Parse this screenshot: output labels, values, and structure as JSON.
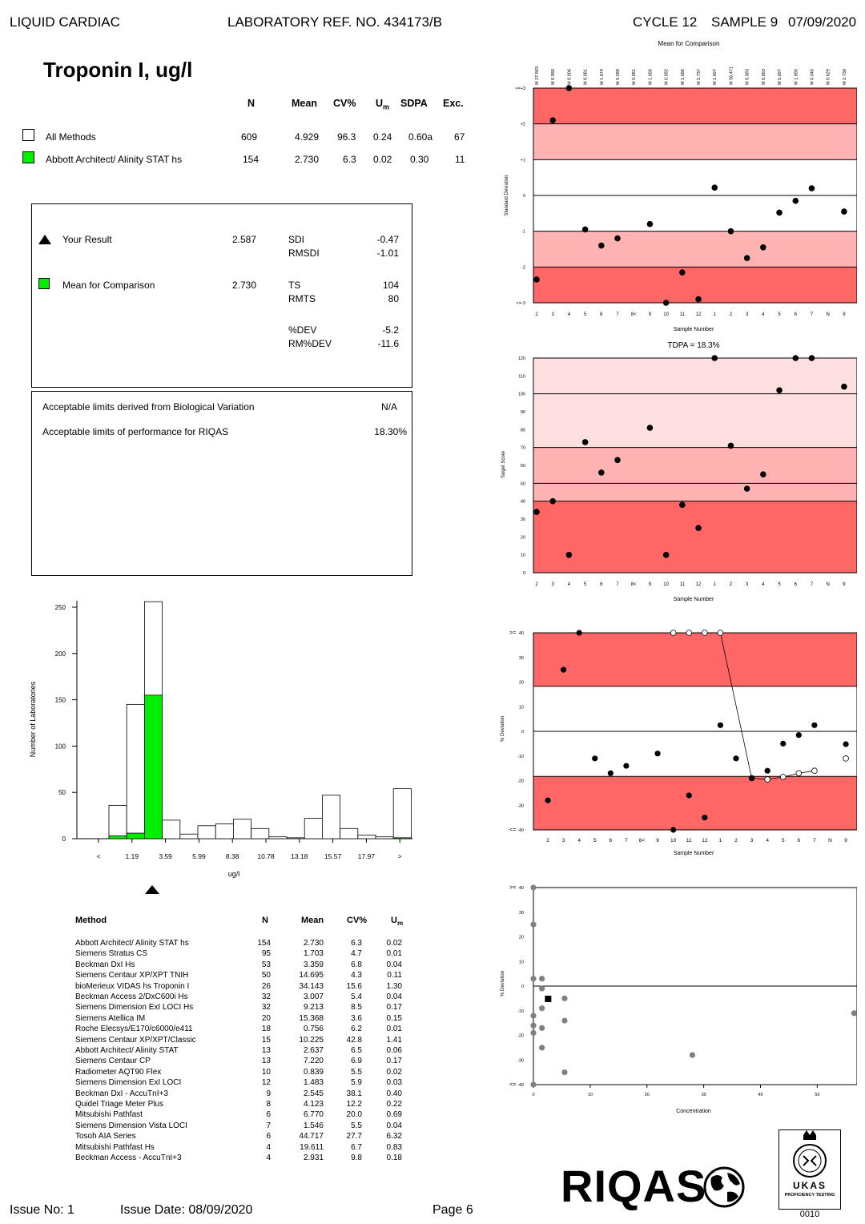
{
  "header": {
    "left": "LIQUID CARDIAC",
    "lab_ref": "LABORATORY REF. NO.  434173/B",
    "cycle": "CYCLE 12",
    "sample": "SAMPLE 9",
    "date": "07/09/2020"
  },
  "title": "Troponin I, ug/l",
  "stats": {
    "headers": {
      "n": "N",
      "mean": "Mean",
      "cv": "CV%",
      "um": "U",
      "um_sub": "m",
      "sdpa": "SDPA",
      "exc": "Exc."
    },
    "rows": [
      {
        "label": "All Methods",
        "n": "609",
        "mean": "4.929",
        "cv": "96.3",
        "um": "0.24",
        "sdpa": "0.60a",
        "exc": "67"
      },
      {
        "label": "Abbott Architect/ Alinity STAT hs",
        "n": "154",
        "mean": "2.730",
        "cv": "6.3",
        "um": "0.02",
        "sdpa": "0.30",
        "exc": "11"
      }
    ]
  },
  "result_box": {
    "your_result_label": "Your Result",
    "your_result_value": "2.587",
    "mean_label": "Mean for Comparison",
    "mean_value": "2.730",
    "sdi_label": "SDI",
    "sdi_value": "-0.47",
    "rmsdi_label": "RMSDI",
    "rmsdi_value": "-1.01",
    "ts_label": "TS",
    "ts_value": "104",
    "rmts_label": "RMTS",
    "rmts_value": "80",
    "dev_label": "%DEV",
    "dev_value": "-5.2",
    "rmdev_label": "RM%DEV",
    "rmdev_value": "-11.6"
  },
  "limits_box": {
    "bio_label": "Acceptable limits derived from Biological Variation",
    "bio_value": "N/A",
    "perf_label": "Acceptable limits of performance for  RIQAS",
    "perf_value": "18.30%"
  },
  "method_table": {
    "headers": {
      "method": "Method",
      "n": "N",
      "mean": "Mean",
      "cv": "CV%",
      "um": "U",
      "um_sub": "m"
    },
    "rows": [
      [
        "Abbott Architect/ Alinity STAT hs",
        "154",
        "2.730",
        "6.3",
        "0.02"
      ],
      [
        "Siemens Stratus CS",
        "95",
        "1.703",
        "4.7",
        "0.01"
      ],
      [
        "Beckman DxI Hs",
        "53",
        "3.359",
        "6.8",
        "0.04"
      ],
      [
        "Siemens Centaur XP/XPT TNIH",
        "50",
        "14.695",
        "4.3",
        "0.11"
      ],
      [
        "bioMerieux VIDAS hs Troponin I",
        "26",
        "34.143",
        "15.6",
        "1.30"
      ],
      [
        "Beckman Access 2/DxC600i Hs",
        "32",
        "3.007",
        "5.4",
        "0.04"
      ],
      [
        "Siemens Dimension ExI LOCI Hs",
        "32",
        "9.213",
        "8.5",
        "0.17"
      ],
      [
        "Siemens Atellica IM",
        "20",
        "15.368",
        "3.6",
        "0.15"
      ],
      [
        "Roche Elecsys/E170/c6000/e411",
        "18",
        "0.756",
        "6.2",
        "0.01"
      ],
      [
        "Siemens Centaur XP/XPT/Classic",
        "15",
        "10.225",
        "42.8",
        "1.41"
      ],
      [
        "Abbott Architect/ Alinity STAT",
        "13",
        "2.637",
        "6.5",
        "0.06"
      ],
      [
        "Siemens Centaur CP",
        "13",
        "7.220",
        "6.9",
        "0.17"
      ],
      [
        "Radiometer AQT90 Flex",
        "10",
        "0.839",
        "5.5",
        "0.02"
      ],
      [
        "Siemens Dimension ExI LOCI",
        "12",
        "1.483",
        "5.9",
        "0.03"
      ],
      [
        "Beckman DxI - AccuTnI+3",
        "9",
        "2.545",
        "38.1",
        "0.40"
      ],
      [
        "Quidel Triage Meter Plus",
        "8",
        "4.123",
        "12.2",
        "0.22"
      ],
      [
        "Mitsubishi Pathfast",
        "6",
        "6.770",
        "20.0",
        "0.69"
      ],
      [
        "Siemens Dimension Vista LOCI",
        "7",
        "1.546",
        "5.5",
        "0.04"
      ],
      [
        "Tosoh AIA Series",
        "6",
        "44.717",
        "27.7",
        "6.32"
      ],
      [
        "Mitsubishi Pathfast Hs",
        "4",
        "19.611",
        "6.7",
        "0.83"
      ],
      [
        "Beckman Access - AccuTnI+3",
        "4",
        "2.931",
        "9.8",
        "0.18"
      ]
    ]
  },
  "footer": {
    "issue_no": "Issue No: 1",
    "issue_date": "Issue Date: 08/09/2020",
    "page": "Page 6",
    "logo": "RIQAS",
    "ukas_text": "UKAS",
    "ukas_sub": "PROFICIENCY TESTING",
    "ukas_no": "0010"
  },
  "colors": {
    "dark_red": "#ff6666",
    "light_red": "#ffb3b3",
    "lighter_red": "#ffe0e0",
    "green": "#00ee00"
  },
  "chart_data": [
    {
      "type": "scatter",
      "name": "sdi_chart",
      "title": "Mean for Comparison",
      "ylabel": "Standard Deviation",
      "xlabel": "Sample Number",
      "ylim": [
        -3,
        3
      ],
      "y_ticks": [
        "<=-3",
        "-2",
        "-1",
        "0",
        "+1",
        "+2",
        ">=+3"
      ],
      "top_labels": [
        "M 27.863",
        "M 0.080",
        "M 0.006",
        "M 0.081",
        "M 1.674",
        "M 5.580",
        "M 0.081",
        "M 1.660",
        "M 0.082",
        "M 1.686",
        "M 5.737",
        "M 1.697",
        "M 56.471",
        "M 0.083",
        "M 0.063",
        "M 5.697",
        "M 1.685",
        "M 0.045",
        "M 0.629",
        "M 2.730"
      ],
      "x_labels": [
        "2",
        "3",
        "4",
        "5",
        "6",
        "7",
        "8<",
        "9",
        "10",
        "11",
        "12",
        "1",
        "2",
        "3",
        "4",
        "5",
        "6",
        "7",
        "N",
        "9"
      ],
      "values": [
        -2.35,
        2.1,
        3.0,
        -0.95,
        -1.4,
        -1.2,
        null,
        -0.8,
        -3.0,
        -2.15,
        -2.9,
        0.22,
        -1.0,
        -1.75,
        -1.45,
        -0.48,
        -0.15,
        0.2,
        null,
        -0.45
      ]
    },
    {
      "type": "scatter",
      "name": "ts_chart",
      "title": "TDPA = 18.3%",
      "ylabel": "Target Score",
      "xlabel": "Sample Number",
      "ylim": [
        0,
        120
      ],
      "y_ticks": [
        "0",
        "10",
        "20",
        "30",
        "40",
        "50",
        "60",
        "70",
        "80",
        "90",
        "100",
        "110",
        "120"
      ],
      "x_labels": [
        "2",
        "3",
        "4",
        "5",
        "6",
        "7",
        "8<",
        "9",
        "10",
        "11",
        "12",
        "1",
        "2",
        "3",
        "4",
        "5",
        "6",
        "7",
        "N",
        "9"
      ],
      "values": [
        34,
        40,
        10,
        73,
        56,
        63,
        null,
        81,
        10,
        38,
        25,
        120,
        71,
        47,
        55,
        102,
        120,
        120,
        null,
        104
      ]
    },
    {
      "type": "scatter",
      "name": "dev_chart",
      "ylabel": "% Deviation",
      "xlabel": "Sample Number",
      "ylim": [
        -40,
        40
      ],
      "y_ticks": [
        "<=-40",
        "-30",
        "-20",
        "-10",
        "0",
        "10",
        "20",
        "30",
        ">=40"
      ],
      "x_labels": [
        "2",
        "3",
        "4",
        "5",
        "6",
        "7",
        "8<",
        "9",
        "10",
        "11",
        "12",
        "1",
        "2",
        "3",
        "4",
        "5",
        "6",
        "7",
        "N",
        "9"
      ],
      "values": [
        -28,
        25,
        40,
        -11,
        -17,
        -14,
        null,
        -9,
        -40,
        -26,
        -35,
        2.5,
        -11,
        -19,
        -16,
        -5,
        -1.5,
        2.5,
        null,
        -5.2
      ],
      "rm_values": [
        null,
        null,
        null,
        null,
        null,
        null,
        null,
        null,
        40,
        40,
        40,
        40,
        null,
        -19,
        -19.5,
        -18.5,
        -17,
        -16,
        null,
        -11
      ]
    },
    {
      "type": "scatter",
      "name": "conc_chart",
      "ylabel": "% Deviation",
      "xlabel": "Concentration",
      "xlim": [
        0,
        57
      ],
      "ylim": [
        -40,
        40
      ],
      "x_ticks": [
        "0",
        "10",
        "20",
        "30",
        "40",
        "50"
      ],
      "y_ticks": [
        "<=-40",
        "-30",
        "-20",
        "-10",
        "0",
        "10",
        "20",
        "30",
        ">=40"
      ],
      "points": [
        [
          0,
          40
        ],
        [
          0,
          25
        ],
        [
          0,
          3
        ],
        [
          0,
          -12
        ],
        [
          0,
          -16
        ],
        [
          0,
          -19
        ],
        [
          0,
          -40
        ],
        [
          1.5,
          3
        ],
        [
          1.5,
          -1
        ],
        [
          1.5,
          -9
        ],
        [
          1.5,
          -17
        ],
        [
          1.5,
          -25
        ],
        [
          5.5,
          -5
        ],
        [
          5.5,
          -14
        ],
        [
          5.5,
          -35
        ],
        [
          28,
          -28
        ],
        [
          56.5,
          -11
        ]
      ],
      "your_result": [
        2.59,
        -5.2
      ]
    },
    {
      "type": "bar",
      "name": "histogram",
      "ylabel": "Number of Laboratories",
      "xlabel": "ug/l",
      "ylim": [
        0,
        250
      ],
      "y_ticks": [
        "0",
        "50",
        "100",
        "150",
        "200",
        "250"
      ],
      "x_tick_labels": [
        "<",
        "1.19",
        "3.59",
        "5.99",
        "8.38",
        "10.78",
        "13.18",
        "15.57",
        "17.97",
        ">"
      ],
      "all_methods": [
        36,
        145,
        256,
        20,
        5,
        14,
        16,
        21,
        11,
        2,
        1,
        22,
        47,
        11,
        4,
        2,
        54
      ],
      "method_group": [
        3,
        6,
        155,
        0,
        0,
        0,
        0,
        0,
        0,
        0,
        0,
        0,
        0,
        0,
        0,
        0,
        1
      ],
      "your_result_marker": "2.587"
    }
  ]
}
